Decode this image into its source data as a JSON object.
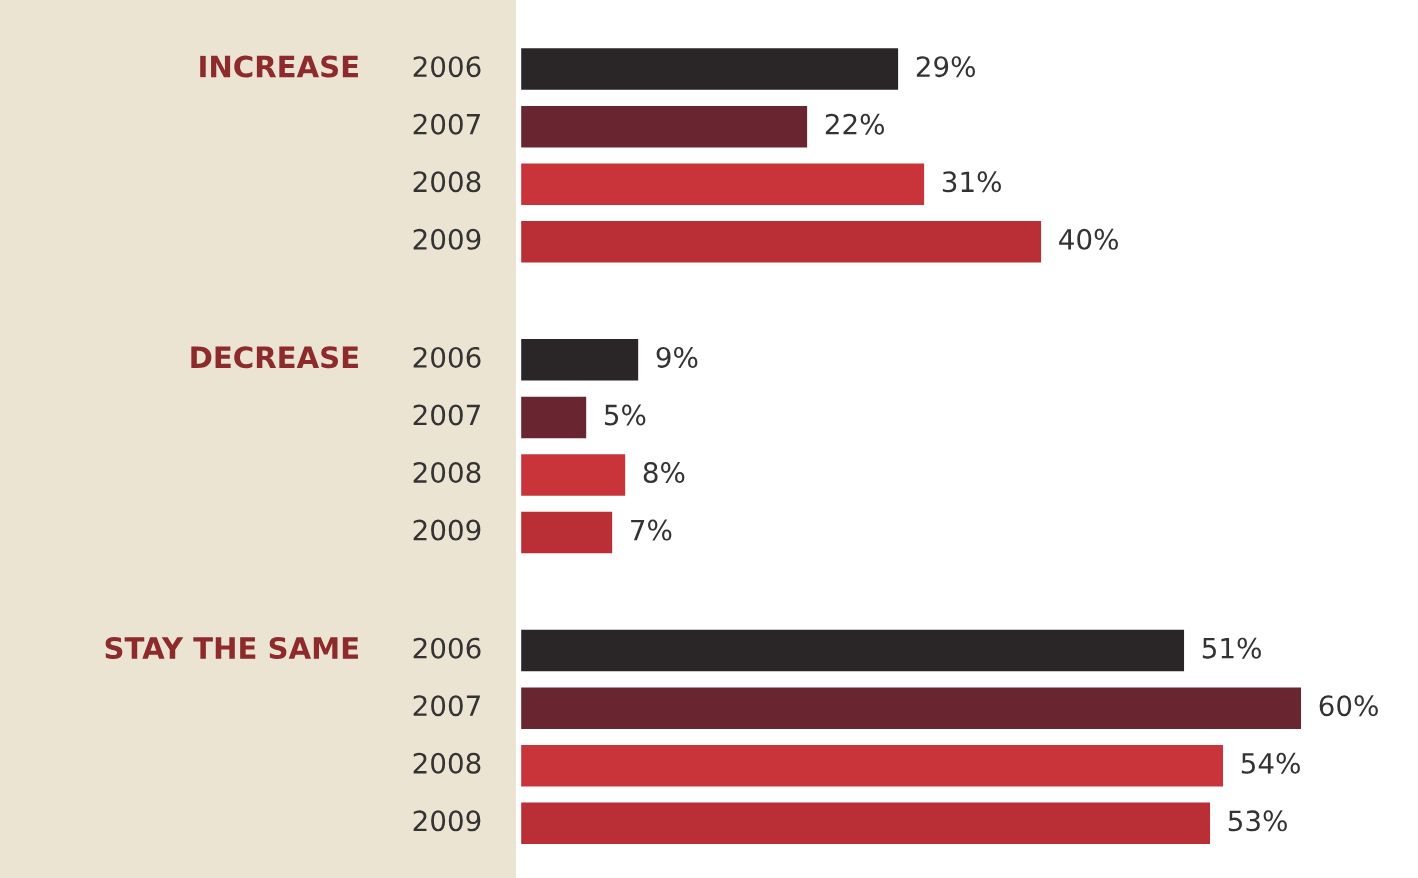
{
  "chart_data": {
    "type": "bar",
    "orientation": "horizontal",
    "categories": [
      "INCREASE",
      "DECREASE",
      "STAY THE SAME"
    ],
    "series": [
      {
        "name": "2006",
        "color": "#2a2627",
        "values": [
          29,
          9,
          51
        ],
        "value_labels": [
          "29%",
          "9%",
          "51%"
        ]
      },
      {
        "name": "2007",
        "color": "#6a2630",
        "values": [
          22,
          5,
          60
        ],
        "value_labels": [
          "22%",
          "5%",
          "60%"
        ]
      },
      {
        "name": "2008",
        "color": "#c9343a",
        "values": [
          31,
          8,
          54
        ],
        "value_labels": [
          "31%",
          "8%",
          "54%"
        ]
      },
      {
        "name": "2009",
        "color": "#b92f35",
        "values": [
          40,
          7,
          53
        ],
        "value_labels": [
          "40%",
          "7%",
          "53%"
        ]
      }
    ],
    "legend": false
  }
}
